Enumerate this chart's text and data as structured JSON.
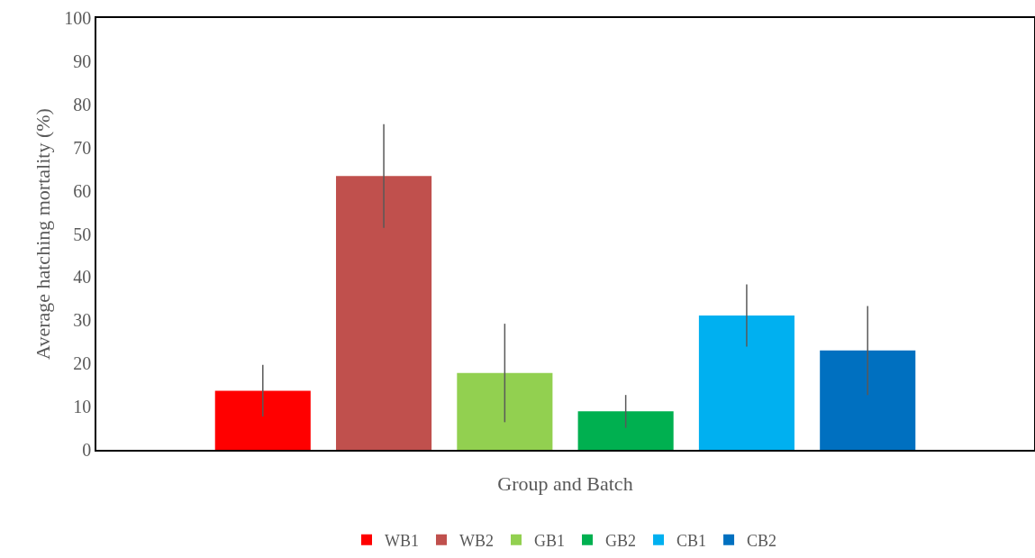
{
  "chart_data": {
    "type": "bar",
    "xlabel": "Group and Batch",
    "ylabel": "Average hatching mortality (%)",
    "categories": [
      null
    ],
    "series": [
      {
        "name": "WB1",
        "color": "#ff0000",
        "values": [
          13.7
        ],
        "errors": [
          6
        ]
      },
      {
        "name": "WB2",
        "color": "#c0504d",
        "values": [
          63.4
        ],
        "errors": [
          12
        ]
      },
      {
        "name": "GB1",
        "color": "#92d050",
        "values": [
          17.8
        ],
        "errors": [
          11.4
        ]
      },
      {
        "name": "GB2",
        "color": "#00b050",
        "values": [
          8.9
        ],
        "errors": [
          3.8
        ]
      },
      {
        "name": "CB1",
        "color": "#00b0f0",
        "values": [
          31.1
        ],
        "errors": [
          7.2
        ]
      },
      {
        "name": "CB2",
        "color": "#0070c0",
        "values": [
          23
        ],
        "errors": [
          10.3
        ]
      }
    ],
    "ylim": [
      0,
      100
    ],
    "yticks": [
      0,
      10,
      20,
      30,
      40,
      50,
      60,
      70,
      80,
      90,
      100
    ],
    "grid": false,
    "legend": "bottom"
  }
}
